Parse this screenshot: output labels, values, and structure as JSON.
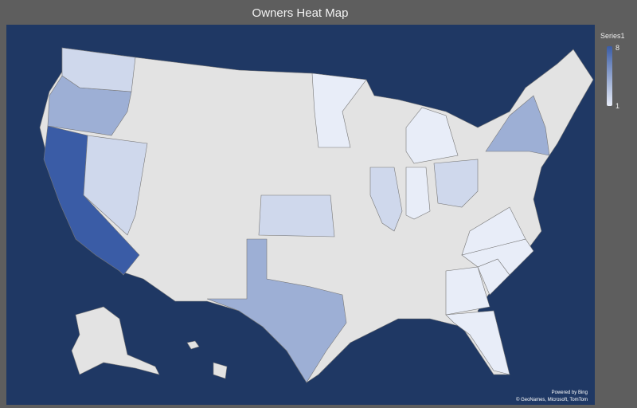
{
  "title": "Owners Heat Map",
  "legend": {
    "title": "Series1",
    "max_label": "8",
    "min_label": "1",
    "min_color": "#e8edf8",
    "max_color": "#3a5ca6"
  },
  "attribution": {
    "line1": "Powered by Bing",
    "line2": "© GeoNames, Microsoft, TomTom"
  },
  "colors": {
    "background": "#5e5e5e",
    "water": "#1f3864",
    "land_no_data": "#e3e3e3"
  },
  "chart_data": {
    "type": "choropleth",
    "series": [
      {
        "name": "Series1",
        "regions": [
          {
            "region": "California",
            "value": 8
          },
          {
            "region": "Oregon",
            "value": 4
          },
          {
            "region": "Texas",
            "value": 4
          },
          {
            "region": "New York",
            "value": 4
          },
          {
            "region": "Washington",
            "value": 2
          },
          {
            "region": "Nevada",
            "value": 2
          },
          {
            "region": "Kansas",
            "value": 2
          },
          {
            "region": "Illinois",
            "value": 2
          },
          {
            "region": "Ohio",
            "value": 2
          },
          {
            "region": "Michigan",
            "value": 1
          },
          {
            "region": "Indiana",
            "value": 1
          },
          {
            "region": "Minnesota",
            "value": 1
          },
          {
            "region": "Florida",
            "value": 1
          },
          {
            "region": "Georgia",
            "value": 1
          },
          {
            "region": "South Carolina",
            "value": 1
          },
          {
            "region": "North Carolina",
            "value": 1
          },
          {
            "region": "Virginia",
            "value": 1
          }
        ]
      }
    ],
    "color_scale": {
      "min": 1,
      "max": 8
    }
  }
}
